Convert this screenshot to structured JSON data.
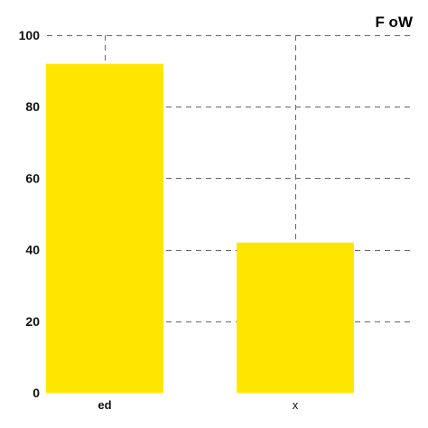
{
  "chart_data": {
    "type": "bar",
    "title": "F oW",
    "categories": [
      "ed",
      "x"
    ],
    "values": [
      92,
      42
    ],
    "ylim": [
      0,
      100
    ],
    "yticks": [
      0,
      20,
      40,
      60,
      80,
      100
    ],
    "grid": true,
    "bar_color": "#FFE600",
    "grid_color": "#666666",
    "xlabel": "",
    "ylabel": ""
  }
}
